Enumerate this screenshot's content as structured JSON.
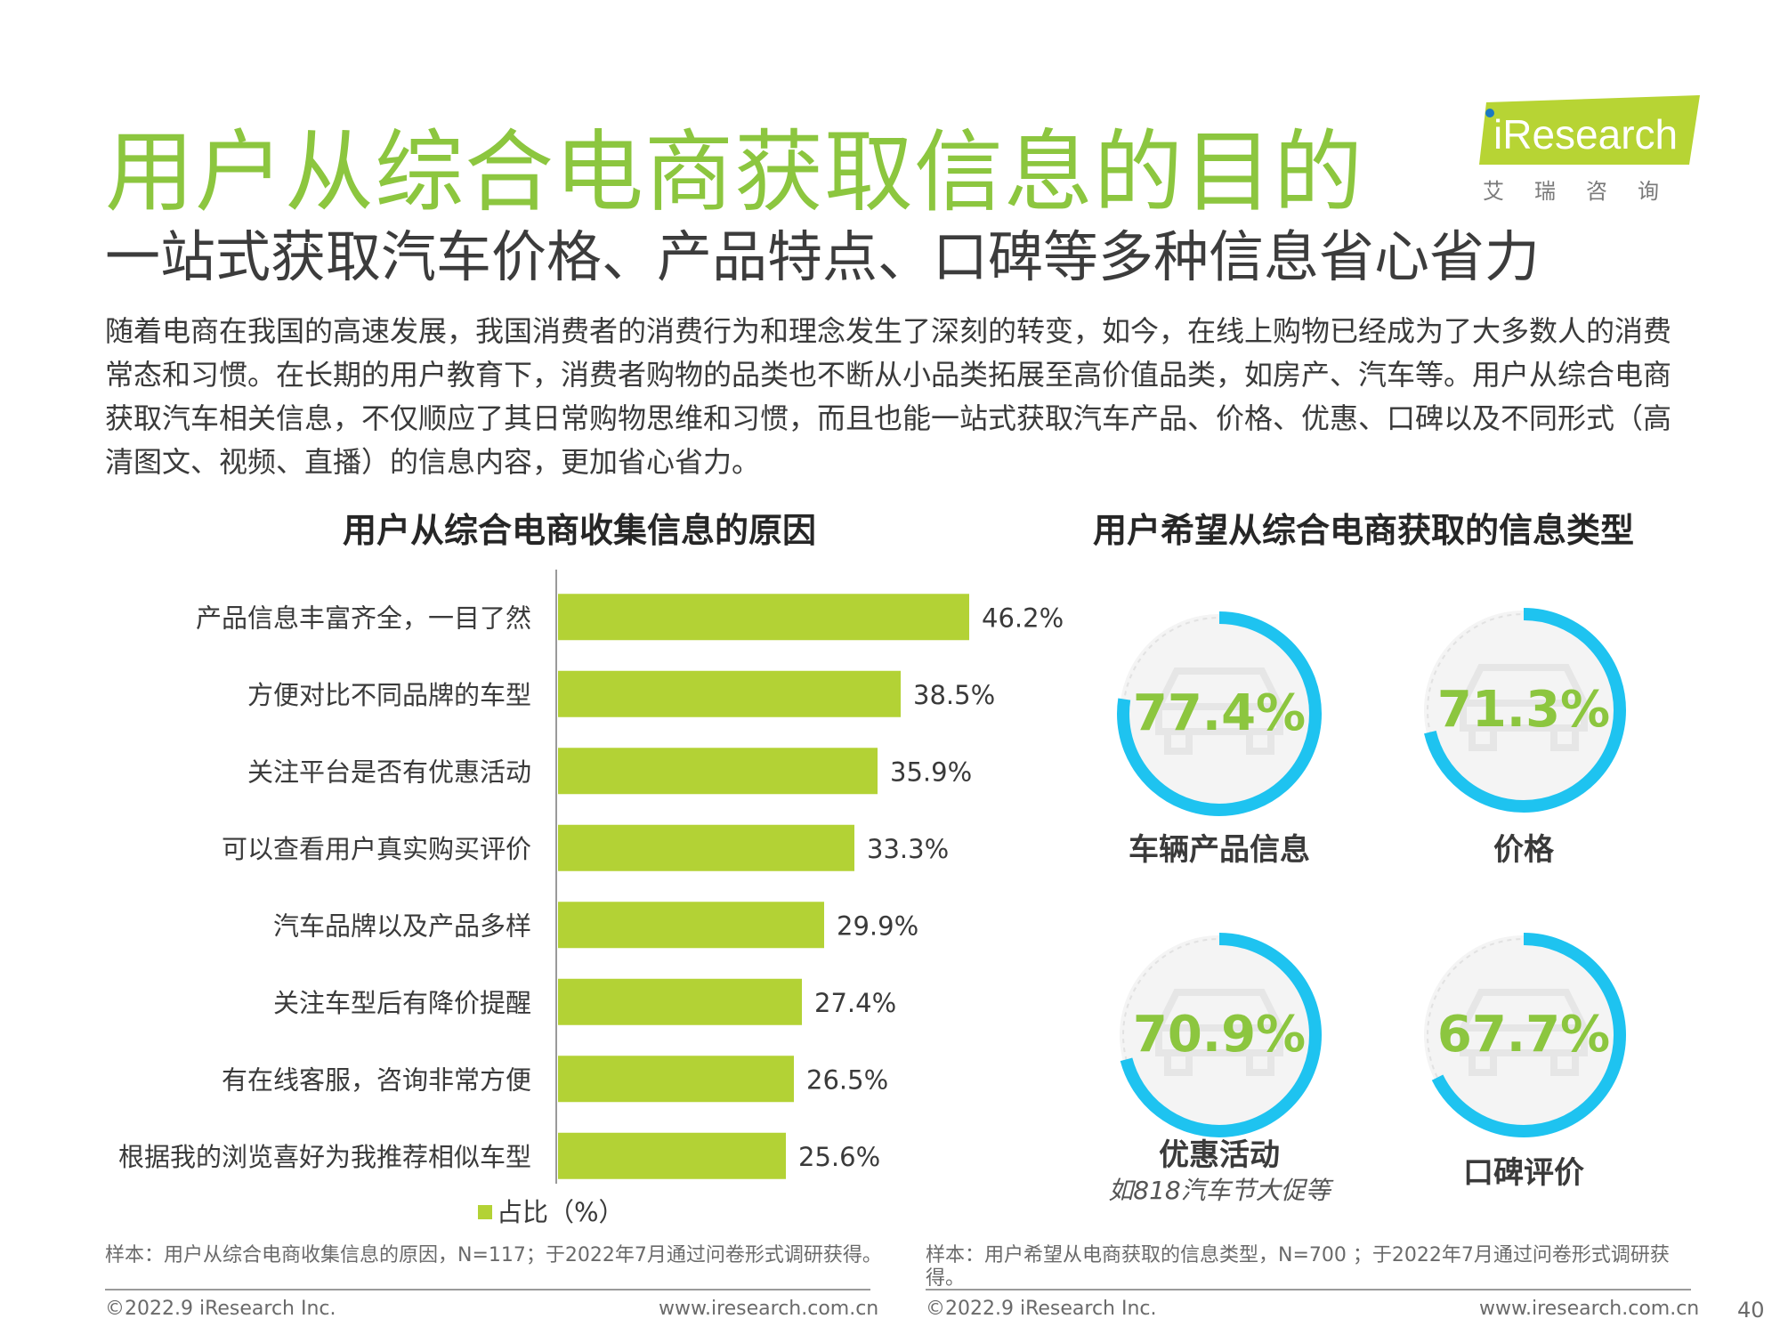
{
  "header": {
    "title": "用户从综合电商获取信息的目的",
    "subtitle": "一站式获取汽车价格、产品特点、口碑等多种信息省心省力",
    "logo_text": "iResearch",
    "logo_tagline": "艾瑞咨询"
  },
  "intro": "随着电商在我国的高速发展，我国消费者的消费行为和理念发生了深刻的转变，如今，在线上购物已经成为了大多数人的消费常态和习惯。在长期的用户教育下，消费者购物的品类也不断从小品类拓展至高价值品类，如房产、汽车等。用户从综合电商获取汽车相关信息，不仅顺应了其日常购物思维和习惯，而且也能一站式获取汽车产品、价格、优惠、口碑以及不同形式（高清图文、视频、直播）的信息内容，更加省心省力。",
  "colors": {
    "bar": "#b3d235",
    "ring": "#1ec3f0",
    "ring_track": "#eeeeee",
    "pct": "#8cc63f",
    "title": "#8cc63f"
  },
  "chart_data": [
    {
      "type": "bar",
      "orientation": "horizontal",
      "title": "用户从综合电商收集信息的原因",
      "categories": [
        "产品信息丰富齐全，一目了然",
        "方便对比不同品牌的车型",
        "关注平台是否有优惠活动",
        "可以查看用户真实购买评价",
        "汽车品牌以及产品多样",
        "关注车型后有降价提醒",
        "有在线客服，咨询非常方便",
        "根据我的浏览喜好为我推荐相似车型"
      ],
      "values": [
        46.2,
        38.5,
        35.9,
        33.3,
        29.9,
        27.4,
        26.5,
        25.6
      ],
      "value_labels": [
        "46.2%",
        "38.5%",
        "35.9%",
        "33.3%",
        "29.9%",
        "27.4%",
        "26.5%",
        "25.6%"
      ],
      "legend": "占比（%）",
      "xlim": [
        0,
        60
      ]
    },
    {
      "type": "pie",
      "style": "ring-gauges",
      "title": "用户希望从综合电商获取的信息类型",
      "items": [
        {
          "label": "车辆产品信息",
          "value": 77.4,
          "display": "77.4%",
          "sub": ""
        },
        {
          "label": "价格",
          "value": 71.3,
          "display": "71.3%",
          "sub": ""
        },
        {
          "label": "优惠活动",
          "value": 70.9,
          "display": "70.9%",
          "sub": "如818汽车节大促等"
        },
        {
          "label": "口碑评价",
          "value": 67.7,
          "display": "67.7%",
          "sub": ""
        }
      ]
    }
  ],
  "notes": {
    "left": "样本：用户从综合电商收集信息的原因，N=117；于2022年7月通过问卷形式调研获得。",
    "right": "样本：用户希望从电商获取的信息类型，N=700 ；于2022年7月通过问卷形式调研获得。"
  },
  "footer": {
    "copyright_left": "©2022.9 iResearch Inc.",
    "url_left": "www.iresearch.com.cn",
    "copyright_right": "©2022.9 iResearch Inc.",
    "url_right": "www.iresearch.com.cn",
    "page_number": "40"
  }
}
